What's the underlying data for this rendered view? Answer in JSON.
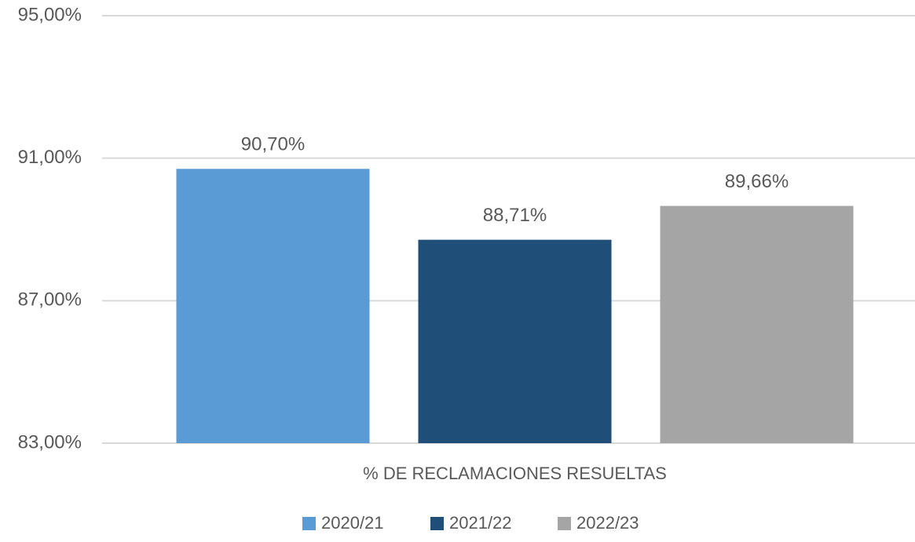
{
  "chart_data": {
    "type": "bar",
    "categories": [
      "% DE RECLAMACIONES RESUELTAS"
    ],
    "series": [
      {
        "name": "2020/21",
        "color": "#5b9bd5",
        "values": [
          90.7
        ],
        "value_labels": [
          "90,70%"
        ]
      },
      {
        "name": "2021/22",
        "color": "#1f4e79",
        "values": [
          88.71
        ],
        "value_labels": [
          "88,71%"
        ]
      },
      {
        "name": "2022/23",
        "color": "#a5a5a5",
        "values": [
          89.66
        ],
        "value_labels": [
          "89,66%"
        ]
      }
    ],
    "ylim": [
      83,
      95
    ],
    "yticks": [
      {
        "value": 83,
        "label": "83,00%"
      },
      {
        "value": 87,
        "label": "87,00%"
      },
      {
        "value": 91,
        "label": "91,00%"
      },
      {
        "value": 95,
        "label": "95,00%"
      }
    ],
    "grid": true,
    "legend": "bottom"
  }
}
